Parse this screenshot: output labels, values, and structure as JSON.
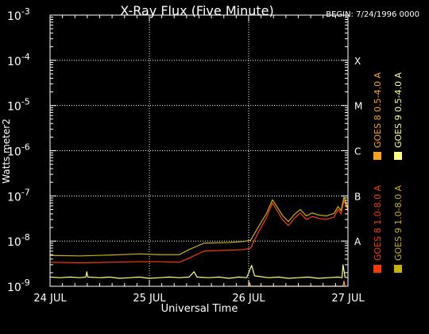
{
  "chart_data": {
    "type": "line",
    "title": "X-Ray Flux (Five Minute)",
    "begin_label": "BEGIN: 7/24/1996 0000",
    "xlabel": "Universal Time",
    "ylabel": "Watts meter2",
    "y_scale": "log",
    "ylim": [
      1e-09,
      0.001
    ],
    "xlim_days": [
      0,
      3
    ],
    "x_tick_labels": [
      "24 JUL",
      "25 JUL",
      "26 JUL",
      "27 JUL"
    ],
    "y_tick_labels": [
      {
        "base": "10",
        "exp": "-9"
      },
      {
        "base": "10",
        "exp": "-8"
      },
      {
        "base": "10",
        "exp": "-7"
      },
      {
        "base": "10",
        "exp": "-6"
      },
      {
        "base": "10",
        "exp": "-5"
      },
      {
        "base": "10",
        "exp": "-4"
      },
      {
        "base": "10",
        "exp": "-3"
      }
    ],
    "flare_classes": [
      "A",
      "B",
      "C",
      "M",
      "X"
    ],
    "gridlines": "dotted",
    "legend": [
      {
        "label": "GOES 8 1.0-8.0 A",
        "color": "#ff3c00"
      },
      {
        "label": "GOES 8 0.5-4.0 A",
        "color": "#ffa020"
      },
      {
        "label": "GOES 9 1.0-8.0 A",
        "color": "#c8b400"
      },
      {
        "label": "GOES 9 0.5-4.0 A",
        "color": "#ffff80"
      }
    ],
    "series": [
      {
        "name": "GOES 8 1.0-8.0 A",
        "color": "#ff3c00",
        "points": [
          [
            0.0,
            3.4e-09
          ],
          [
            0.3,
            3.3e-09
          ],
          [
            0.6,
            3.4e-09
          ],
          [
            0.9,
            3.5e-09
          ],
          [
            1.1,
            3.5e-09
          ],
          [
            1.3,
            3.4e-09
          ],
          [
            1.4,
            4.2e-09
          ],
          [
            1.55,
            6e-09
          ],
          [
            1.8,
            6.3e-09
          ],
          [
            1.95,
            6.5e-09
          ],
          [
            2.02,
            7e-09
          ],
          [
            2.1,
            1.6e-08
          ],
          [
            2.18,
            3.3e-08
          ],
          [
            2.24,
            7e-08
          ],
          [
            2.28,
            5e-08
          ],
          [
            2.34,
            3e-08
          ],
          [
            2.4,
            2.2e-08
          ],
          [
            2.46,
            3.2e-08
          ],
          [
            2.52,
            4.2e-08
          ],
          [
            2.58,
            3e-08
          ],
          [
            2.64,
            3.5e-08
          ],
          [
            2.7,
            3.2e-08
          ],
          [
            2.78,
            3e-08
          ],
          [
            2.86,
            3.4e-08
          ],
          [
            2.9,
            5e-08
          ],
          [
            2.93,
            4e-08
          ],
          [
            2.96,
            8e-08
          ],
          [
            3.0,
            4.5e-08
          ]
        ]
      },
      {
        "name": "GOES 9 1.0-8.0 A",
        "color": "#c8b400",
        "points": [
          [
            0.0,
            4.8e-09
          ],
          [
            0.3,
            4.7e-09
          ],
          [
            0.6,
            4.9e-09
          ],
          [
            0.9,
            5.2e-09
          ],
          [
            1.1,
            5e-09
          ],
          [
            1.3,
            5e-09
          ],
          [
            1.4,
            6.5e-09
          ],
          [
            1.55,
            9e-09
          ],
          [
            1.8,
            9.3e-09
          ],
          [
            1.95,
            9.8e-09
          ],
          [
            2.02,
            1.05e-08
          ],
          [
            2.1,
            2.1e-08
          ],
          [
            2.18,
            4.1e-08
          ],
          [
            2.24,
            8.2e-08
          ],
          [
            2.28,
            6e-08
          ],
          [
            2.34,
            3.7e-08
          ],
          [
            2.4,
            2.7e-08
          ],
          [
            2.46,
            3.9e-08
          ],
          [
            2.52,
            5e-08
          ],
          [
            2.58,
            3.6e-08
          ],
          [
            2.64,
            4.2e-08
          ],
          [
            2.7,
            3.8e-08
          ],
          [
            2.78,
            3.6e-08
          ],
          [
            2.86,
            4.1e-08
          ],
          [
            2.9,
            5.8e-08
          ],
          [
            2.93,
            4.7e-08
          ],
          [
            2.96,
            9.5e-08
          ],
          [
            3.0,
            5.2e-08
          ]
        ]
      },
      {
        "name": "GOES 8 0.5-4.0 A",
        "color": "#ffa020",
        "points": [
          [
            2.0,
            1e-09
          ],
          [
            2.01,
            1.2e-09
          ],
          [
            2.02,
            1e-09
          ],
          [
            2.95,
            1e-09
          ],
          [
            2.96,
            1.3e-09
          ],
          [
            2.97,
            1e-09
          ]
        ]
      },
      {
        "name": "GOES 9 0.5-4.0 A",
        "color": "#ffff80",
        "points": [
          [
            0.0,
            1.6e-09
          ],
          [
            0.1,
            1.55e-09
          ],
          [
            0.2,
            1.6e-09
          ],
          [
            0.3,
            1.55e-09
          ],
          [
            0.36,
            1.6e-09
          ],
          [
            0.37,
            2.1e-09
          ],
          [
            0.38,
            1.6e-09
          ],
          [
            0.5,
            1.55e-09
          ],
          [
            0.6,
            1.6e-09
          ],
          [
            0.7,
            1.5e-09
          ],
          [
            0.8,
            1.55e-09
          ],
          [
            0.9,
            1.6e-09
          ],
          [
            1.0,
            1.5e-09
          ],
          [
            1.1,
            1.55e-09
          ],
          [
            1.2,
            1.6e-09
          ],
          [
            1.3,
            1.55e-09
          ],
          [
            1.4,
            1.6e-09
          ],
          [
            1.45,
            2.1e-09
          ],
          [
            1.48,
            1.6e-09
          ],
          [
            1.6,
            1.55e-09
          ],
          [
            1.7,
            1.6e-09
          ],
          [
            1.8,
            1.5e-09
          ],
          [
            1.9,
            1.6e-09
          ],
          [
            1.98,
            1.55e-09
          ],
          [
            2.03,
            2.9e-09
          ],
          [
            2.06,
            1.7e-09
          ],
          [
            2.2,
            1.55e-09
          ],
          [
            2.3,
            1.6e-09
          ],
          [
            2.4,
            1.5e-09
          ],
          [
            2.5,
            1.55e-09
          ],
          [
            2.6,
            1.6e-09
          ],
          [
            2.7,
            1.5e-09
          ],
          [
            2.8,
            1.55e-09
          ],
          [
            2.9,
            1.6e-09
          ],
          [
            2.94,
            1.55e-09
          ],
          [
            2.95,
            3e-09
          ],
          [
            2.97,
            1.6e-09
          ],
          [
            3.0,
            1.55e-09
          ]
        ]
      }
    ]
  }
}
